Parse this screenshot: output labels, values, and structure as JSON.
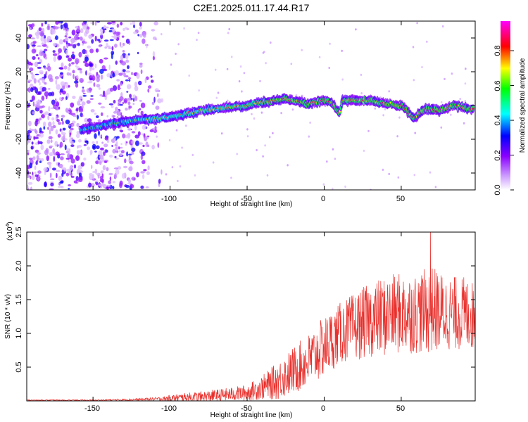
{
  "figure": {
    "title": "C2E1.2025.011.17.44.R17"
  },
  "chart_data": [
    {
      "type": "heatmap",
      "title": "C2E1.2025.011.17.44.R17",
      "xlabel": "Height of straight line (km)",
      "ylabel": "Frequency (Hz)",
      "xlim": [
        -193,
        98
      ],
      "ylim": [
        -50,
        50
      ],
      "x_ticks": [
        -150,
        -100,
        -50,
        0,
        50
      ],
      "x_tick_labels": [
        "-150",
        "-100",
        "-50",
        "0",
        "50"
      ],
      "y_ticks": [
        -40,
        -20,
        0,
        20,
        40
      ],
      "y_tick_labels": [
        "-40",
        "-20",
        "0",
        "20",
        "40"
      ],
      "colorbar": {
        "label": "Normalized spectral amplitude",
        "range": [
          0,
          0.97
        ],
        "ticks": [
          0.0,
          0.2,
          0.4,
          0.6,
          0.8
        ],
        "tick_labels": [
          "0.0",
          "0.2",
          "0.4",
          "0.6",
          "0.8"
        ],
        "colors": [
          "#ffffff",
          "#8a00ff",
          "#0000ff",
          "#00ffff",
          "#00ff00",
          "#ffff00",
          "#ff0000",
          "#ff00ff"
        ]
      },
      "ridge": {
        "x": [
          -155,
          -140,
          -125,
          -110,
          -100,
          -90,
          -80,
          -70,
          -60,
          -50,
          -40,
          -30,
          -25,
          -20,
          -10,
          -5,
          0,
          5,
          10,
          12,
          20,
          30,
          40,
          50,
          55,
          58,
          65,
          75,
          85,
          95
        ],
        "y": [
          -14,
          -11,
          -9,
          -8,
          -7,
          -5,
          -3,
          -2,
          -1,
          0,
          2,
          3,
          4,
          3,
          1,
          2,
          3,
          2,
          -5,
          3,
          3,
          3,
          1,
          0,
          -4,
          -8,
          -2,
          -3,
          0,
          -2
        ]
      },
      "noise_region_x": [
        -193,
        -115
      ]
    },
    {
      "type": "line",
      "title": "",
      "xlabel": "Height of straight line (km)",
      "ylabel": "SNR (10 * v/v)",
      "y_scale_label": "(x10",
      "y_scale_exponent": "4",
      "y_scale_close": ")",
      "xlim": [
        -193,
        98
      ],
      "ylim": [
        0,
        2.5
      ],
      "x_ticks": [
        -150,
        -100,
        -50,
        0,
        50
      ],
      "x_tick_labels": [
        "-150",
        "-100",
        "-50",
        "0",
        "50"
      ],
      "y_ticks": [
        0.5,
        1.0,
        1.5,
        2.0,
        2.5
      ],
      "y_tick_labels": [
        "0.5",
        "1.0",
        "1.5",
        "2.0",
        "2.5"
      ],
      "line_color": "#e8302c",
      "envelope": {
        "x": [
          -193,
          -150,
          -120,
          -105,
          -100,
          -80,
          -60,
          -50,
          -40,
          -30,
          -20,
          -10,
          0,
          10,
          20,
          30,
          40,
          50,
          60,
          70,
          80,
          90,
          98
        ],
        "mean": [
          0.01,
          0.01,
          0.02,
          0.03,
          0.04,
          0.06,
          0.1,
          0.12,
          0.2,
          0.3,
          0.45,
          0.6,
          0.8,
          1.0,
          1.1,
          1.2,
          1.25,
          1.3,
          1.3,
          1.35,
          1.3,
          1.3,
          1.25
        ],
        "spread": [
          0.01,
          0.01,
          0.02,
          0.03,
          0.05,
          0.08,
          0.1,
          0.12,
          0.18,
          0.28,
          0.35,
          0.4,
          0.45,
          0.45,
          0.5,
          0.55,
          0.6,
          0.6,
          0.6,
          0.65,
          0.55,
          0.55,
          0.5
        ]
      },
      "peak": {
        "x": 69,
        "y": 2.5
      }
    }
  ]
}
